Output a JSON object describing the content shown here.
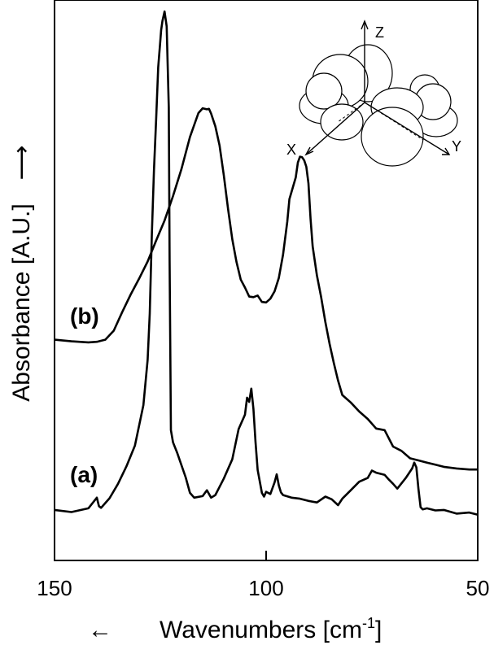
{
  "chart_data": {
    "type": "line",
    "title": "",
    "xlabel": "Wavenumbers [cm",
    "xlabel_sup": "-1",
    "xlabel_tail": "]",
    "ylabel": "Absorbance [A.U.]",
    "x_arrow": "←",
    "y_arrow": "⟶",
    "xlim": [
      150,
      50
    ],
    "ylim": [
      0,
      100
    ],
    "x_ticks": [
      150,
      100,
      50
    ],
    "x_tick_labels": [
      "150",
      "100",
      "50"
    ],
    "y_ticks_shown": false,
    "grid": false,
    "legend": "none",
    "series": [
      {
        "name": "(a)",
        "x": [
          150,
          146,
          142,
          140,
          139.5,
          139,
          137,
          135,
          133,
          131,
          129,
          128,
          127.5,
          127,
          126.5,
          126,
          125.5,
          125,
          124.8,
          124.5,
          124,
          123.5,
          123,
          122.8,
          122.5,
          122,
          121,
          119,
          118,
          117,
          115,
          114,
          113,
          112,
          110,
          108,
          106.5,
          105,
          104.5,
          104,
          103.5,
          103,
          102.5,
          102,
          101,
          100.5,
          100,
          99,
          98,
          97.5,
          97,
          96.5,
          96,
          94,
          92,
          90,
          88,
          86,
          84.5,
          83,
          82,
          80,
          78,
          76,
          75,
          74,
          72,
          71,
          70,
          69,
          67,
          65.5,
          65,
          64.5,
          64,
          63.5,
          63,
          62,
          60,
          58,
          55,
          52,
          50
        ],
        "y": [
          9.5,
          9.1,
          9.8,
          11.8,
          10.2,
          9.9,
          11.7,
          14.4,
          17.7,
          21.6,
          29.2,
          37.7,
          46.4,
          61.4,
          73.4,
          82.7,
          92.7,
          97.7,
          99.7,
          101.4,
          103.2,
          100.4,
          85.1,
          56.4,
          24.5,
          22.2,
          20.2,
          15.6,
          12.7,
          11.8,
          12.1,
          13.2,
          11.8,
          12.3,
          15.4,
          19.0,
          24.7,
          27.4,
          30.6,
          29.8,
          32.3,
          28.5,
          22.2,
          17.0,
          12.7,
          12.0,
          12.9,
          12.5,
          14.7,
          16.2,
          14.1,
          12.8,
          12.3,
          11.8,
          11.6,
          11.2,
          10.9,
          12.0,
          11.5,
          10.4,
          11.6,
          13.2,
          14.8,
          15.5,
          16.9,
          16.5,
          16.1,
          15.2,
          14.4,
          13.5,
          15.5,
          17.3,
          18.4,
          17.5,
          13.4,
          10.0,
          9.6,
          9.8,
          9.4,
          9.5,
          8.8,
          9.0,
          8.6
        ]
      },
      {
        "name": "(b)",
        "x": [
          150,
          146,
          142,
          140,
          138,
          136,
          134,
          132,
          130,
          128,
          126,
          124,
          122,
          120,
          118,
          116,
          115,
          114,
          113.5,
          113,
          112,
          111,
          110,
          109,
          108,
          107,
          106,
          105,
          104,
          103,
          102,
          101,
          100,
          99,
          98,
          97,
          96,
          95,
          94.5,
          93,
          92.5,
          92,
          91.5,
          91,
          90.5,
          90,
          89.5,
          89,
          88,
          87,
          86,
          85,
          84,
          83,
          82,
          80,
          78,
          76,
          74,
          72,
          70,
          68,
          66,
          64,
          62,
          60,
          58,
          55,
          52,
          50
        ],
        "y": [
          41.5,
          41.2,
          41.0,
          41.1,
          41.5,
          43.2,
          46.7,
          50.0,
          53.0,
          56.2,
          60.1,
          63.9,
          68.5,
          73.6,
          79.6,
          84.1,
          85.0,
          84.8,
          84.9,
          84.0,
          81.6,
          78.0,
          72.4,
          66.1,
          60.4,
          56.1,
          52.8,
          51.3,
          49.6,
          49.5,
          49.8,
          48.6,
          48.5,
          49.2,
          50.6,
          53.1,
          57.5,
          63.7,
          67.9,
          72.0,
          74.8,
          75.9,
          75.8,
          75.2,
          74.0,
          70.9,
          64.2,
          59.0,
          53.6,
          49.5,
          44.8,
          40.7,
          37.1,
          33.8,
          31.1,
          29.7,
          28.0,
          26.6,
          24.8,
          24.5,
          21.4,
          20.6,
          19.2,
          18.8,
          18.4,
          18.0,
          17.6,
          17.3,
          17.1,
          17.1
        ]
      }
    ]
  },
  "inset": {
    "axis_z": "Z",
    "axis_x": "X",
    "axis_y": "Y"
  }
}
